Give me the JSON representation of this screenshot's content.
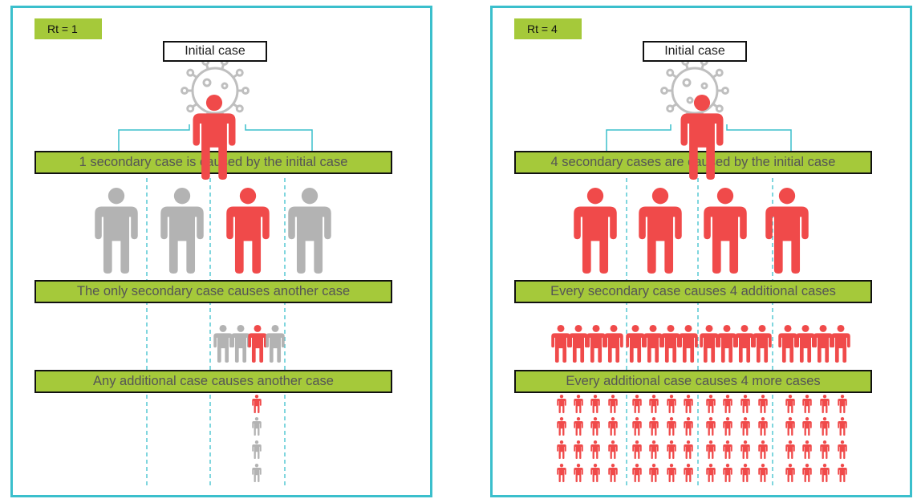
{
  "panels": [
    {
      "rt_label": "Rt = 1",
      "initial_label": "Initial case",
      "banners": [
        "1 secondary case is caused by the initial case",
        "The only secondary case causes another case",
        "Any additional case causes another case"
      ]
    },
    {
      "rt_label": "Rt = 4",
      "initial_label": "Initial case",
      "banners": [
        "4 secondary cases are caused by the initial case",
        "Every secondary case causes 4 additional cases",
        "Every additional case causes 4 more cases"
      ]
    }
  ],
  "colors": {
    "border": "#3bbfcc",
    "banner": "#a5c93a",
    "infected": "#f04a4a",
    "healthy": "#b3b3b3",
    "virus": "#bfbfbf"
  },
  "icons": [
    "virus-icon",
    "person-icon"
  ]
}
